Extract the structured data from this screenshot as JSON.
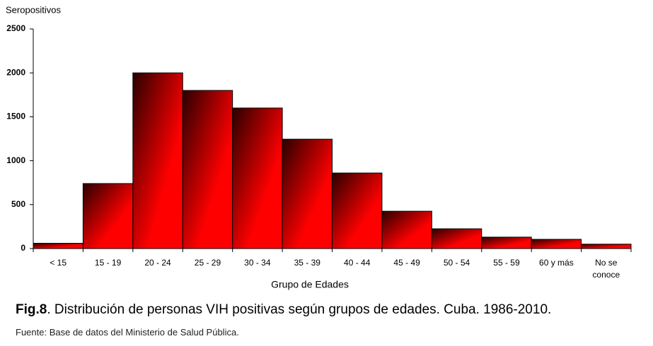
{
  "chart_data": {
    "type": "bar",
    "y_label": "Seropositivos",
    "x_label": "Grupo de Edades",
    "categories": [
      "< 15",
      "15 - 19",
      "20 - 24",
      "25 - 29",
      "30 - 34",
      "35 - 39",
      "40 - 44",
      "45 - 49",
      "50 - 54",
      "55 - 59",
      "60 y más",
      "No se conoce"
    ],
    "values": [
      60,
      740,
      2000,
      1800,
      1600,
      1245,
      860,
      425,
      225,
      130,
      105,
      50
    ],
    "color": "#ff0000",
    "ylim": [
      0,
      2500
    ],
    "yticks": [
      0,
      500,
      1000,
      1500,
      2000,
      2500
    ],
    "grid": false
  },
  "caption_label": "Fig.8",
  "caption_text": ". Distribución de personas VIH positivas según grupos de edades. Cuba. 1986-2010.",
  "source": "Fuente: Base de datos del Ministerio de Salud Pública."
}
